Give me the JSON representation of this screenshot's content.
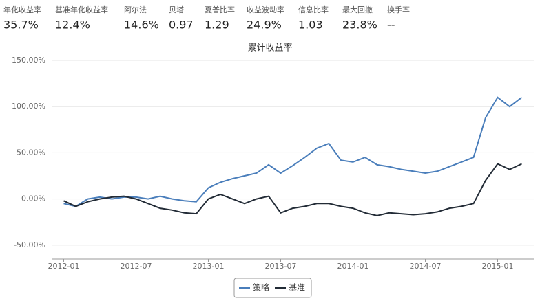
{
  "metrics": [
    {
      "label": "年化收益率",
      "value": "35.7%"
    },
    {
      "label": "基准年化收益率",
      "value": "12.4%"
    },
    {
      "label": "阿尔法",
      "value": "14.6%"
    },
    {
      "label": "贝塔",
      "value": "0.97"
    },
    {
      "label": "夏普比率",
      "value": "1.29"
    },
    {
      "label": "收益波动率",
      "value": "24.9%"
    },
    {
      "label": "信息比率",
      "value": "1.03"
    },
    {
      "label": "最大回撤",
      "value": "23.8%"
    },
    {
      "label": "换手率",
      "value": "--"
    }
  ],
  "chart_data": {
    "type": "line",
    "title": "累计收益率",
    "x": [
      "2012-01",
      "2012-02",
      "2012-03",
      "2012-04",
      "2012-05",
      "2012-06",
      "2012-07",
      "2012-08",
      "2012-09",
      "2012-10",
      "2012-11",
      "2012-12",
      "2013-01",
      "2013-02",
      "2013-03",
      "2013-04",
      "2013-05",
      "2013-06",
      "2013-07",
      "2013-08",
      "2013-09",
      "2013-10",
      "2013-11",
      "2013-12",
      "2014-01",
      "2014-02",
      "2014-03",
      "2014-04",
      "2014-05",
      "2014-06",
      "2014-07",
      "2014-08",
      "2014-09",
      "2014-10",
      "2014-11",
      "2014-12",
      "2015-01",
      "2015-02",
      "2015-03"
    ],
    "series": [
      {
        "name": "策略",
        "color": "#4a7ebb",
        "values": [
          -5,
          -8,
          0,
          2,
          0,
          2,
          2,
          0,
          3,
          0,
          -2,
          -3,
          12,
          18,
          22,
          25,
          28,
          37,
          28,
          36,
          45,
          55,
          60,
          42,
          40,
          45,
          37,
          35,
          32,
          30,
          28,
          30,
          35,
          40,
          45,
          88,
          110,
          100,
          110
        ]
      },
      {
        "name": "基准",
        "color": "#222b36",
        "values": [
          -2,
          -8,
          -3,
          0,
          2,
          3,
          0,
          -5,
          -10,
          -12,
          -15,
          -16,
          0,
          5,
          0,
          -5,
          0,
          3,
          -15,
          -10,
          -8,
          -5,
          -5,
          -8,
          -10,
          -15,
          -18,
          -15,
          -16,
          -17,
          -16,
          -14,
          -10,
          -8,
          -5,
          20,
          38,
          32,
          38
        ]
      }
    ],
    "xlim": [
      "2011-12",
      "2015-04"
    ],
    "xticks": [
      "2012-01",
      "2012-07",
      "2013-01",
      "2013-07",
      "2014-01",
      "2014-07",
      "2015-01"
    ],
    "ylim": [
      -65,
      150
    ],
    "yticks": [
      {
        "value": -50,
        "label": "-50.00%"
      },
      {
        "value": 0,
        "label": "0.00%"
      },
      {
        "value": 50,
        "label": "50.00%"
      },
      {
        "value": 100,
        "label": "100.00%"
      },
      {
        "value": 150,
        "label": "150.00%"
      }
    ],
    "grid": true,
    "legend": "bottom"
  }
}
